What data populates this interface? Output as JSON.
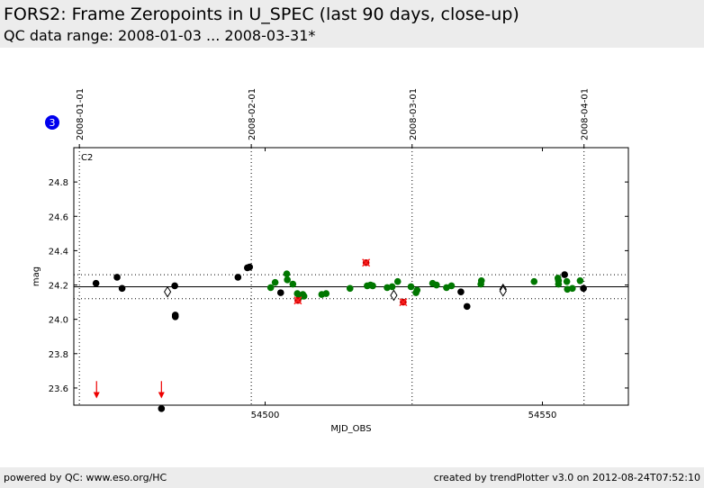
{
  "header": {
    "title": "FORS2: Frame Zeropoints in U_SPEC (last 90 days, close-up)",
    "subtitle": "QC data range: 2008-01-03 ... 2008-03-31*"
  },
  "footer": {
    "left": "powered by QC: www.eso.org/HC",
    "right": "created by trendPlotter v3.0 on 2012-08-24T07:52:10"
  },
  "badge": {
    "value": "3",
    "color": "#0000ee"
  },
  "chart_data": {
    "type": "scatter",
    "panel_label": "C2",
    "xlabel": "MJD_OBS",
    "ylabel": "mag",
    "xlim": [
      54465.5,
      54565.5
    ],
    "ylim": [
      23.5,
      25.0
    ],
    "x_ticks": [
      54500,
      54550
    ],
    "y_ticks": [
      23.6,
      23.8,
      24.0,
      24.2,
      24.4,
      24.6,
      24.8
    ],
    "y_tick_labels": [
      "23.6",
      "23.8",
      "24.0",
      "24.2",
      "24.4",
      "24.6",
      "24.8"
    ],
    "grid": false,
    "reference_lines": {
      "median": 24.19,
      "upper": 24.26,
      "lower": 24.12
    },
    "date_markers": [
      {
        "label": "2008-01-01",
        "mjd": 54466.5
      },
      {
        "label": "2008-02-01",
        "mjd": 54497.5
      },
      {
        "label": "2008-03-01",
        "mjd": 54526.5
      },
      {
        "label": "2008-04-01",
        "mjd": 54557.5
      }
    ],
    "colors": {
      "black": "#000000",
      "green": "#007700",
      "red": "#cc0000",
      "open": "#ffffff"
    },
    "series": [
      {
        "name": "black",
        "color": "#000000",
        "marker": "circle",
        "points": [
          [
            54469.5,
            24.21
          ],
          [
            54473.3,
            24.245
          ],
          [
            54474.2,
            24.18
          ],
          [
            54481.3,
            23.48
          ],
          [
            54483.7,
            24.195
          ],
          [
            54483.8,
            24.025
          ],
          [
            54483.8,
            24.015
          ],
          [
            54495.1,
            24.245
          ],
          [
            54496.8,
            24.3
          ],
          [
            54497.2,
            24.305
          ],
          [
            54502.8,
            24.155
          ],
          [
            54535.3,
            24.16
          ],
          [
            54536.4,
            24.075
          ],
          [
            54554.0,
            24.26
          ],
          [
            54557.4,
            24.18
          ]
        ]
      },
      {
        "name": "green",
        "color": "#007700",
        "marker": "circle",
        "points": [
          [
            54501.0,
            24.185
          ],
          [
            54501.8,
            24.215
          ],
          [
            54503.9,
            24.265
          ],
          [
            54504.0,
            24.23
          ],
          [
            54505.0,
            24.205
          ],
          [
            54505.8,
            24.15
          ],
          [
            54506.2,
            24.13
          ],
          [
            54506.8,
            24.145
          ],
          [
            54507.0,
            24.135
          ],
          [
            54510.2,
            24.145
          ],
          [
            54511.0,
            24.15
          ],
          [
            54515.3,
            24.18
          ],
          [
            54518.4,
            24.195
          ],
          [
            54519.0,
            24.2
          ],
          [
            54519.4,
            24.195
          ],
          [
            54522.0,
            24.185
          ],
          [
            54522.9,
            24.19
          ],
          [
            54523.9,
            24.22
          ],
          [
            54526.3,
            24.19
          ],
          [
            54527.2,
            24.155
          ],
          [
            54527.4,
            24.17
          ],
          [
            54530.2,
            24.21
          ],
          [
            54530.9,
            24.2
          ],
          [
            54532.7,
            24.185
          ],
          [
            54533.6,
            24.195
          ],
          [
            54538.9,
            24.205
          ],
          [
            54539.0,
            24.225
          ],
          [
            54548.5,
            24.22
          ],
          [
            54552.8,
            24.24
          ],
          [
            54552.9,
            24.225
          ],
          [
            54552.9,
            24.205
          ],
          [
            54554.4,
            24.22
          ],
          [
            54554.5,
            24.175
          ],
          [
            54555.4,
            24.18
          ],
          [
            54556.8,
            24.225
          ]
        ]
      },
      {
        "name": "red",
        "color": "#cc0000",
        "marker": "x-circle",
        "points": [
          [
            54505.9,
            24.11
          ],
          [
            54518.2,
            24.33
          ],
          [
            54524.9,
            24.1
          ]
        ]
      },
      {
        "name": "open",
        "color": "#ffffff",
        "marker": "diamond",
        "points": [
          [
            54482.4,
            24.16
          ],
          [
            54523.2,
            24.14
          ],
          [
            54542.9,
            24.175
          ],
          [
            54542.9,
            24.165
          ]
        ]
      }
    ],
    "limit_arrows": [
      {
        "x": 54469.6,
        "y_from": 23.64,
        "y_to": 23.55
      },
      {
        "x": 54481.3,
        "y_from": 23.64,
        "y_to": 23.55
      }
    ]
  }
}
